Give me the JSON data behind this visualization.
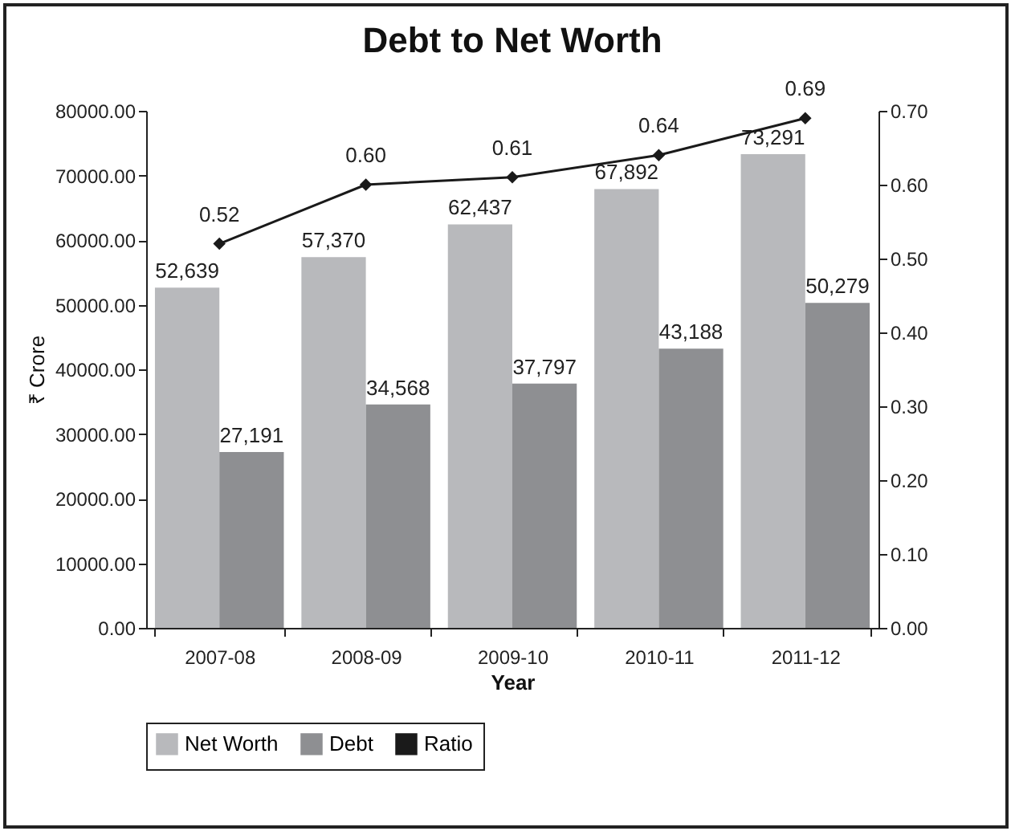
{
  "chart_data": {
    "type": "bar",
    "title": "Debt to Net Worth",
    "xlabel": "Year",
    "ylabel": "₹ Crore",
    "categories": [
      "2007-08",
      "2008-09",
      "2009-10",
      "2010-11",
      "2011-12"
    ],
    "series": [
      {
        "name": "Net Worth",
        "color": "#b8b9bc",
        "values": [
          52639,
          57370,
          62437,
          67892,
          73291
        ],
        "value_labels": [
          "52,639",
          "57,370",
          "62,437",
          "67,892",
          "73,291"
        ]
      },
      {
        "name": "Debt",
        "color": "#8e8f92",
        "values": [
          27191,
          34568,
          37797,
          43188,
          50279
        ],
        "value_labels": [
          "27,191",
          "34,568",
          "37,797",
          "43,188",
          "50,279"
        ]
      },
      {
        "name": "Ratio",
        "type": "line",
        "axis": "y2",
        "color": "#1a1a1a",
        "values": [
          0.52,
          0.6,
          0.61,
          0.64,
          0.69
        ],
        "value_labels": [
          "0.52",
          "0.60",
          "0.61",
          "0.64",
          "0.69"
        ]
      }
    ],
    "ylim": [
      0,
      80000
    ],
    "yticks": [
      {
        "value": 0,
        "label": "0.00"
      },
      {
        "value": 10000,
        "label": "10000.00"
      },
      {
        "value": 20000,
        "label": "20000.00"
      },
      {
        "value": 30000,
        "label": "30000.00"
      },
      {
        "value": 40000,
        "label": "40000.00"
      },
      {
        "value": 50000,
        "label": "50000.00"
      },
      {
        "value": 60000,
        "label": "60000.00"
      },
      {
        "value": 70000,
        "label": "70000.00"
      },
      {
        "value": 80000,
        "label": "80000.00"
      }
    ],
    "y2lim": [
      0,
      0.7
    ],
    "y2ticks": [
      {
        "value": 0,
        "label": "0.00"
      },
      {
        "value": 0.1,
        "label": "0.10"
      },
      {
        "value": 0.2,
        "label": "0.20"
      },
      {
        "value": 0.3,
        "label": "0.30"
      },
      {
        "value": 0.4,
        "label": "0.40"
      },
      {
        "value": 0.5,
        "label": "0.50"
      },
      {
        "value": 0.6,
        "label": "0.60"
      },
      {
        "value": 0.7,
        "label": "0.70"
      }
    ],
    "legend": "bottom",
    "marker": "diamond"
  }
}
